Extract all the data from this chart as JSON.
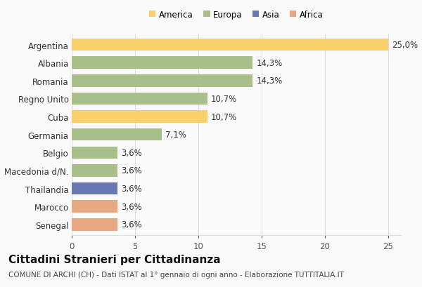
{
  "categories": [
    "Argentina",
    "Albania",
    "Romania",
    "Regno Unito",
    "Cuba",
    "Germania",
    "Belgio",
    "Macedonia d/N.",
    "Thailandia",
    "Marocco",
    "Senegal"
  ],
  "values": [
    25.0,
    14.3,
    14.3,
    10.7,
    10.7,
    7.1,
    3.6,
    3.6,
    3.6,
    3.6,
    3.6
  ],
  "continents": [
    "America",
    "Europa",
    "Europa",
    "Europa",
    "America",
    "Europa",
    "Europa",
    "Europa",
    "Asia",
    "Africa",
    "Africa"
  ],
  "colors": {
    "America": "#F9D06B",
    "Europa": "#A8BF8A",
    "Asia": "#6878B0",
    "Africa": "#E8A882"
  },
  "legend_order": [
    "America",
    "Europa",
    "Asia",
    "Africa"
  ],
  "title": "Cittadini Stranieri per Cittadinanza",
  "subtitle": "COMUNE DI ARCHI (CH) - Dati ISTAT al 1° gennaio di ogni anno - Elaborazione TUTTITALIA.IT",
  "xlim": [
    0,
    26
  ],
  "xticks": [
    0,
    5,
    10,
    15,
    20,
    25
  ],
  "bar_height": 0.68,
  "bg_color": "#FAFAFA",
  "grid_color": "#DDDDDD",
  "label_fontsize": 8.5,
  "value_fontsize": 8.5,
  "title_fontsize": 11,
  "subtitle_fontsize": 7.5
}
